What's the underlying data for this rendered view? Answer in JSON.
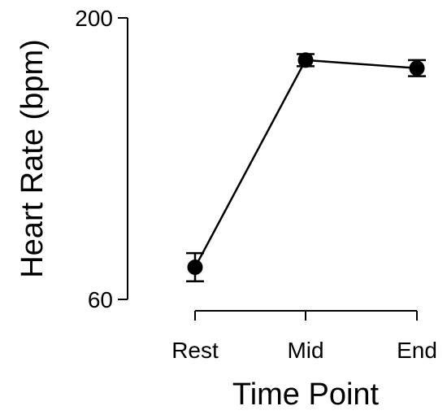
{
  "chart_data": {
    "type": "line",
    "title": "",
    "xlabel": "Time Point",
    "ylabel": "Heart Rate (bpm)",
    "categories": [
      "Rest",
      "Mid",
      "End"
    ],
    "ylim": [
      60,
      200
    ],
    "yticks": [
      60,
      200
    ],
    "grid": false,
    "series": [
      {
        "values": [
          76,
          179,
          175
        ],
        "error": [
          7,
          3,
          4
        ]
      }
    ],
    "colors": {
      "line": "#000000",
      "point": "#000000",
      "background": "#ffffff"
    }
  }
}
